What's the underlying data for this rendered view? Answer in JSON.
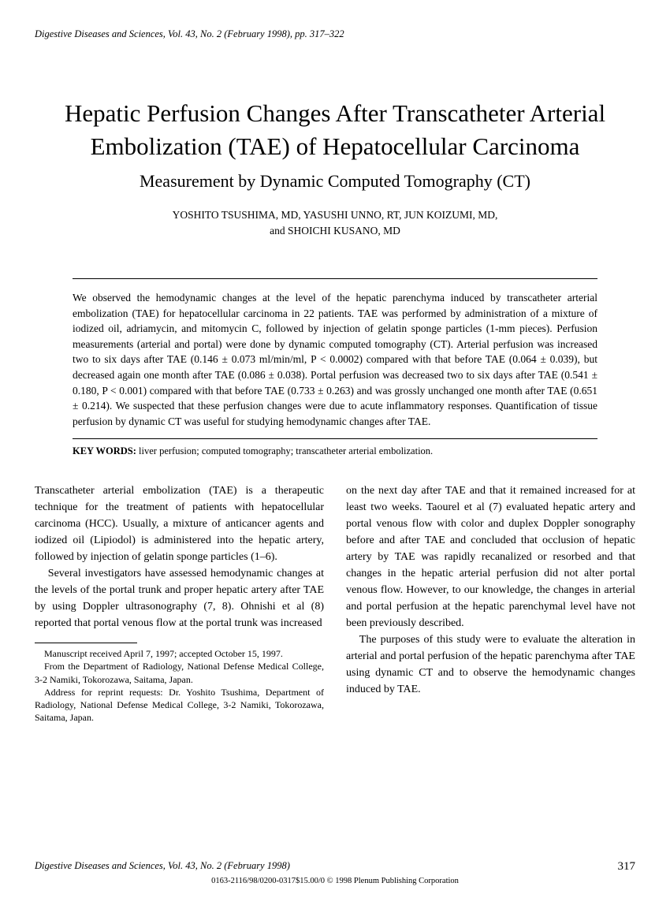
{
  "header": {
    "journal_line": "Digestive Diseases and Sciences, Vol. 43, No. 2 (February 1998), pp. 317–322"
  },
  "title": {
    "main": "Hepatic Perfusion Changes After Transcatheter Arterial Embolization (TAE) of Hepatocellular Carcinoma",
    "sub": "Measurement by Dynamic Computed Tomography (CT)"
  },
  "authors": {
    "line1": "YOSHITO TSUSHIMA, MD, YASUSHI UNNO, RT, JUN KOIZUMI, MD,",
    "line2": "and SHOICHI KUSANO, MD"
  },
  "abstract": {
    "text": "We observed the hemodynamic changes at the level of the hepatic parenchyma induced by transcatheter arterial embolization (TAE) for hepatocellular carcinoma in 22 patients. TAE was performed by administration of a mixture of iodized oil, adriamycin, and mitomycin C, followed by injection of gelatin sponge particles (1-mm pieces). Perfusion measurements (arterial and portal) were done by dynamic computed tomography (CT). Arterial perfusion was increased two to six days after TAE (0.146 ± 0.073 ml/min/ml, P < 0.0002) compared with that before TAE (0.064 ± 0.039), but decreased again one month after TAE (0.086 ± 0.038). Portal perfusion was decreased two to six days after TAE (0.541 ± 0.180, P < 0.001) compared with that before TAE (0.733 ± 0.263) and was grossly unchanged one month after TAE (0.651 ± 0.214). We suspected that these perfusion changes were due to acute inflammatory responses. Quantification of tissue perfusion by dynamic CT was useful for studying hemodynamic changes after TAE."
  },
  "keywords": {
    "label": "KEY WORDS:",
    "text": " liver perfusion; computed tomography; transcatheter arterial embolization."
  },
  "body": {
    "col1": {
      "p1": "Transcatheter arterial embolization (TAE) is a therapeutic technique for the treatment of patients with hepatocellular carcinoma (HCC). Usually, a mixture of anticancer agents and iodized oil (Lipiodol) is administered into the hepatic artery, followed by injection of gelatin sponge particles (1–6).",
      "p2": "Several investigators have assessed hemodynamic changes at the levels of the portal trunk and proper hepatic artery after TAE by using Doppler ultrasonography (7, 8). Ohnishi et al (8) reported that portal venous flow at the portal trunk was increased"
    },
    "col2": {
      "p1": "on the next day after TAE and that it remained increased for at least two weeks. Taourel et al (7) evaluated hepatic artery and portal venous flow with color and duplex Doppler sonography before and after TAE and concluded that occlusion of hepatic artery by TAE was rapidly recanalized or resorbed and that changes in the hepatic arterial perfusion did not alter portal venous flow. However, to our knowledge, the changes in arterial and portal perfusion at the hepatic parenchymal level have not been previously described.",
      "p2": "The purposes of this study were to evaluate the alteration in arterial and portal perfusion of the hepatic parenchyma after TAE using dynamic CT and to observe the hemodynamic changes induced by TAE."
    }
  },
  "footnotes": {
    "n1": "Manuscript received April 7, 1997; accepted October 15, 1997.",
    "n2": "From the Department of Radiology, National Defense Medical College, 3-2 Namiki, Tokorozawa, Saitama, Japan.",
    "n3": "Address for reprint requests: Dr. Yoshito Tsushima, Department of Radiology, National Defense Medical College, 3-2 Namiki, Tokorozawa, Saitama, Japan."
  },
  "footer": {
    "journal": "Digestive Diseases and Sciences, Vol. 43, No. 2 (February 1998)",
    "page": "317",
    "copyright": "0163-2116/98/0200-0317$15.00/0 © 1998 Plenum Publishing Corporation"
  }
}
